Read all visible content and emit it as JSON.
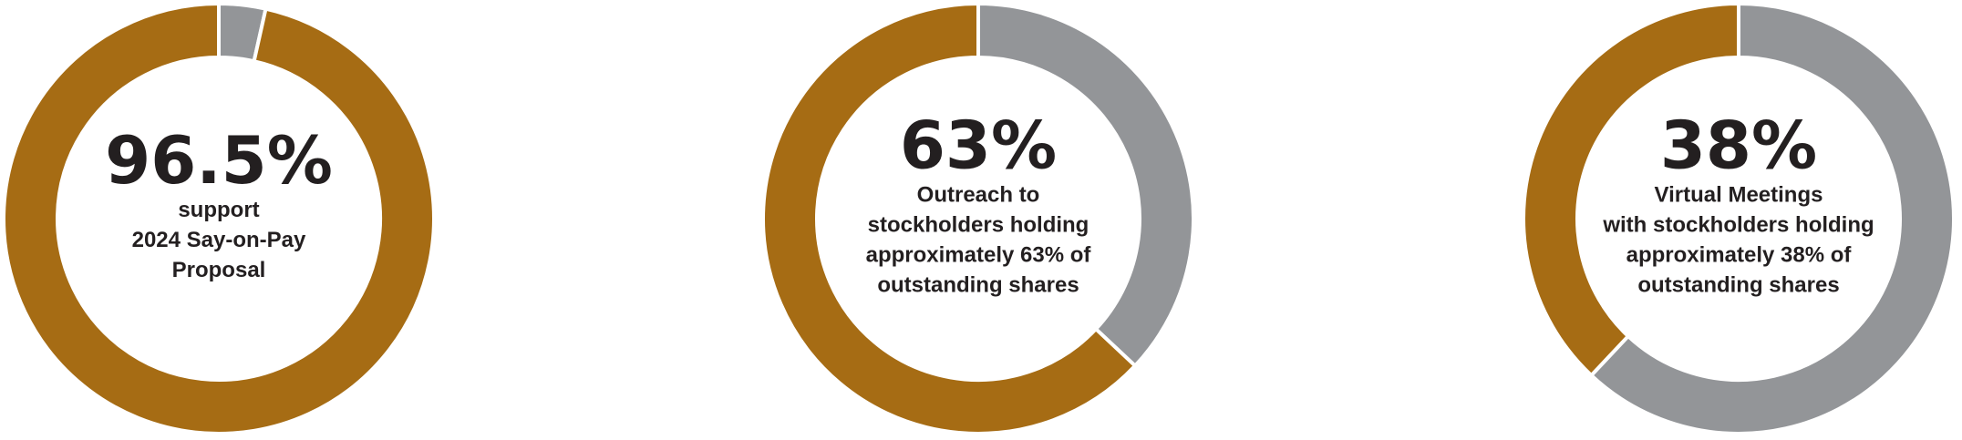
{
  "chart_data": [
    {
      "type": "pie",
      "values": [
        3.5,
        96.5
      ],
      "colors": [
        "#939598",
        "#a66c14"
      ],
      "value_labels": [
        null,
        "96.5%"
      ],
      "caption": [
        "support",
        "2024 Say-on-Pay",
        "Proposal"
      ]
    },
    {
      "type": "pie",
      "values": [
        37,
        63
      ],
      "colors": [
        "#939598",
        "#a66c14"
      ],
      "value_labels": [
        null,
        "63%"
      ],
      "caption": [
        "Outreach to",
        "stockholders holding",
        "approximately 63% of",
        "outstanding shares"
      ]
    },
    {
      "type": "pie",
      "values": [
        62,
        38
      ],
      "colors": [
        "#939598",
        "#a66c14"
      ],
      "value_labels": [
        null,
        "38%"
      ],
      "caption": [
        "Virtual Meetings",
        "with stockholders holding",
        "approximately 38% of",
        "outstanding shares"
      ]
    }
  ]
}
